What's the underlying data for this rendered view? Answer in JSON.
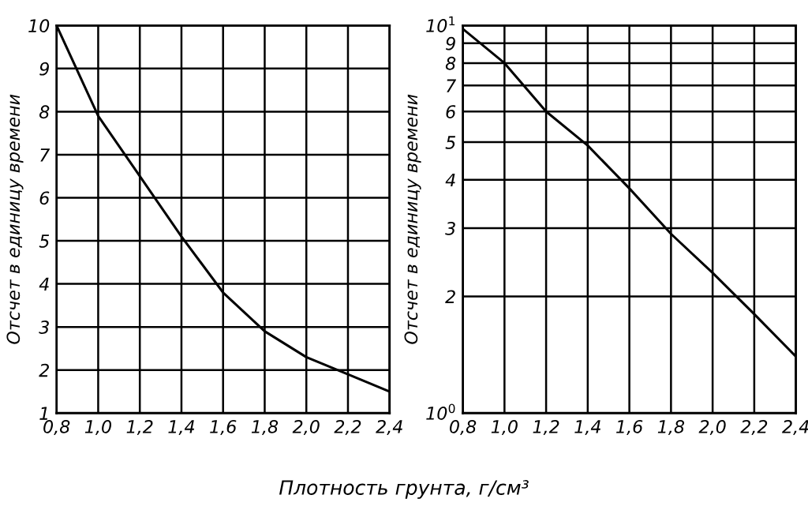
{
  "chart_data": [
    {
      "type": "line",
      "xlabel": "Плотность грунта, г/см³",
      "ylabel": "Отсчет в единицу времени",
      "x": [
        0.8,
        1.0,
        1.2,
        1.4,
        1.6,
        1.8,
        2.0,
        2.2,
        2.4
      ],
      "series": [
        {
          "color": "#000000",
          "values": [
            10,
            7.9,
            6.5,
            5.1,
            3.8,
            2.9,
            2.3,
            1.9,
            1.5
          ]
        }
      ],
      "xlim": [
        0.8,
        2.4
      ],
      "ylim": [
        1,
        10
      ],
      "xticks": [
        {
          "value": 0.8,
          "label": "0,8"
        },
        {
          "value": 1.0,
          "label": "1,0"
        },
        {
          "value": 1.2,
          "label": "1,2"
        },
        {
          "value": 1.4,
          "label": "1,4"
        },
        {
          "value": 1.6,
          "label": "1,6"
        },
        {
          "value": 1.8,
          "label": "1,8"
        },
        {
          "value": 2.0,
          "label": "2,0"
        },
        {
          "value": 2.2,
          "label": "2,2"
        },
        {
          "value": 2.4,
          "label": "2,4"
        }
      ],
      "yticks": [
        1,
        2,
        3,
        4,
        5,
        6,
        7,
        8,
        9,
        10
      ],
      "grid": true,
      "line_style": "solid"
    },
    {
      "type": "line",
      "ylabel": "Отсчет в единицу времени",
      "log": "y",
      "x": [
        0.8,
        1.0,
        1.2,
        1.4,
        1.6,
        1.8,
        2.0,
        2.2,
        2.4
      ],
      "series": [
        {
          "color": "#000000",
          "values": [
            9.8,
            8.0,
            6.0,
            4.9,
            3.8,
            2.9,
            2.3,
            1.8,
            1.4
          ]
        }
      ],
      "xlim": [
        0.8,
        2.4
      ],
      "ylim": [
        1,
        10
      ],
      "xticks": [
        {
          "value": 0.8,
          "label": "0,8"
        },
        {
          "value": 1.0,
          "label": "1,0"
        },
        {
          "value": 1.2,
          "label": "1,2"
        },
        {
          "value": 1.4,
          "label": "1,4"
        },
        {
          "value": 1.6,
          "label": "1,6"
        },
        {
          "value": 1.8,
          "label": "1,8"
        },
        {
          "value": 2.0,
          "label": "2,0"
        },
        {
          "value": 2.2,
          "label": "2,2"
        },
        {
          "value": 2.4,
          "label": "2,4"
        }
      ],
      "yticks": [
        {
          "value": 1,
          "label": "10$^{0}$"
        },
        2,
        3,
        4,
        5,
        6,
        7,
        8,
        9,
        {
          "value": 10,
          "label": "10$^{1}$"
        }
      ],
      "grid": true,
      "line_style": "solid"
    }
  ]
}
